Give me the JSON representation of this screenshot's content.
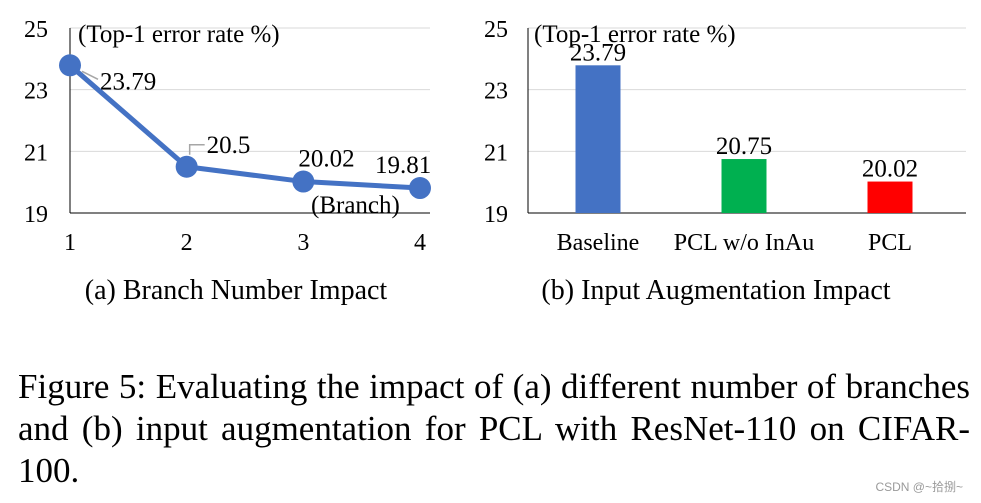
{
  "chart_data": [
    {
      "type": "line",
      "title": "(a) Branch Number Impact",
      "ylabel": "(Top-1 error rate %)",
      "xlabel": "(Branch)",
      "x": [
        1,
        2,
        3,
        4
      ],
      "xticks": [
        "1",
        "2",
        "3",
        "4"
      ],
      "values": [
        23.79,
        20.5,
        20.02,
        19.81
      ],
      "data_labels": [
        "23.79",
        "20.5",
        "20.02",
        "19.81"
      ],
      "ylim": [
        19,
        25
      ],
      "yticks": [
        "19",
        "21",
        "23",
        "25"
      ],
      "grid": true,
      "color": "#4472c4"
    },
    {
      "type": "bar",
      "title": "(b) Input Augmentation Impact",
      "ylabel": "(Top-1 error rate %)",
      "categories": [
        "Baseline",
        "PCL w/o InAu",
        "PCL"
      ],
      "values": [
        23.79,
        20.75,
        20.02
      ],
      "data_labels": [
        "23.79",
        "20.75",
        "20.02"
      ],
      "colors": [
        "#4472c4",
        "#00b050",
        "#ff0000"
      ],
      "ylim": [
        19,
        25
      ],
      "yticks": [
        "19",
        "21",
        "23",
        "25"
      ],
      "grid": true
    }
  ],
  "caption": "Figure 5: Evaluating the impact of (a) different number of branches and (b) input augmentation for PCL with ResNet-110 on CIFAR-100.",
  "watermark": "CSDN @~拾捌~"
}
